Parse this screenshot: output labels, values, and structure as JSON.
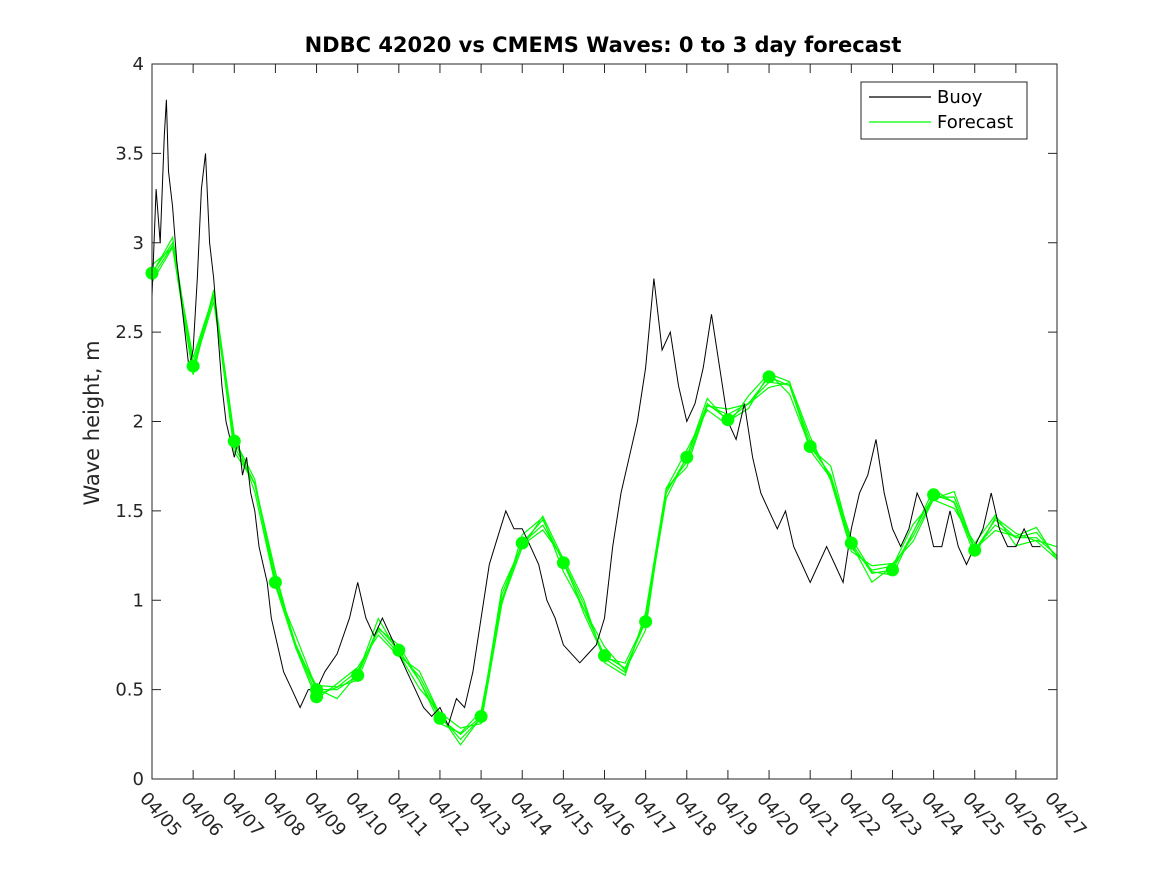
{
  "chart_data": {
    "type": "line",
    "title": "NDBC 42020 vs CMEMS Waves: 0 to 3 day forecast",
    "xlabel": "",
    "ylabel": "Wave height, m",
    "ylim": [
      0,
      4
    ],
    "yticks": [
      "0",
      "0.5",
      "1",
      "1.5",
      "2",
      "2.5",
      "3",
      "3.5",
      "4"
    ],
    "xlim": [
      0,
      22
    ],
    "xticks": [
      "04/05",
      "04/06",
      "04/07",
      "04/08",
      "04/09",
      "04/10",
      "04/11",
      "04/12",
      "04/13",
      "04/14",
      "04/15",
      "04/16",
      "04/17",
      "04/18",
      "04/19",
      "04/20",
      "04/21",
      "04/22",
      "04/23",
      "04/24",
      "04/25",
      "04/26",
      "04/27"
    ],
    "x_unit": "days since 04/05",
    "legend_position": "top-right",
    "grid": false,
    "series": [
      {
        "name": "Buoy",
        "color": "#000000",
        "x": [
          0,
          0.1,
          0.2,
          0.3,
          0.35,
          0.4,
          0.5,
          0.6,
          0.7,
          0.8,
          0.9,
          1.0,
          1.1,
          1.2,
          1.3,
          1.4,
          1.5,
          1.6,
          1.7,
          1.8,
          1.9,
          2.0,
          2.1,
          2.2,
          2.3,
          2.4,
          2.5,
          2.6,
          2.7,
          2.8,
          2.9,
          3.0,
          3.2,
          3.4,
          3.6,
          3.8,
          4.0,
          4.2,
          4.5,
          4.8,
          5.0,
          5.2,
          5.4,
          5.6,
          5.8,
          6.0,
          6.2,
          6.4,
          6.6,
          6.8,
          7.0,
          7.2,
          7.4,
          7.6,
          7.8,
          8.0,
          8.2,
          8.4,
          8.6,
          8.8,
          9.0,
          9.2,
          9.4,
          9.6,
          9.8,
          10.0,
          10.2,
          10.4,
          10.6,
          10.8,
          11.0,
          11.2,
          11.4,
          11.6,
          11.8,
          12.0,
          12.2,
          12.4,
          12.6,
          12.8,
          13.0,
          13.2,
          13.4,
          13.6,
          13.8,
          14.0,
          14.2,
          14.4,
          14.6,
          14.8,
          15.0,
          15.2,
          15.4,
          15.6,
          15.8,
          16.0,
          16.2,
          16.4,
          16.6,
          16.8,
          17.0,
          17.2,
          17.4,
          17.6,
          17.8,
          18.0,
          18.2,
          18.4,
          18.6,
          18.8,
          19.0,
          19.2,
          19.4,
          19.6,
          19.8,
          20.0,
          20.2,
          20.4,
          20.6,
          20.8,
          21.0,
          21.2,
          21.4,
          21.6
        ],
        "y": [
          2.7,
          3.3,
          3.0,
          3.6,
          3.8,
          3.4,
          3.2,
          2.9,
          2.7,
          2.5,
          2.3,
          2.4,
          2.8,
          3.3,
          3.5,
          3.0,
          2.8,
          2.5,
          2.2,
          2.0,
          1.9,
          1.8,
          1.9,
          1.7,
          1.8,
          1.6,
          1.5,
          1.3,
          1.2,
          1.1,
          0.9,
          0.8,
          0.6,
          0.5,
          0.4,
          0.5,
          0.5,
          0.6,
          0.7,
          0.9,
          1.1,
          0.9,
          0.8,
          0.9,
          0.8,
          0.7,
          0.6,
          0.5,
          0.4,
          0.35,
          0.4,
          0.3,
          0.45,
          0.4,
          0.6,
          0.9,
          1.2,
          1.35,
          1.5,
          1.4,
          1.4,
          1.3,
          1.2,
          1.0,
          0.9,
          0.75,
          0.7,
          0.65,
          0.7,
          0.75,
          0.9,
          1.3,
          1.6,
          1.8,
          2.0,
          2.3,
          2.8,
          2.4,
          2.5,
          2.2,
          2.0,
          2.1,
          2.3,
          2.6,
          2.3,
          2.0,
          1.9,
          2.1,
          1.8,
          1.6,
          1.5,
          1.4,
          1.5,
          1.3,
          1.2,
          1.1,
          1.2,
          1.3,
          1.2,
          1.1,
          1.4,
          1.6,
          1.7,
          1.9,
          1.6,
          1.4,
          1.3,
          1.4,
          1.6,
          1.5,
          1.3,
          1.3,
          1.5,
          1.3,
          1.2,
          1.3,
          1.4,
          1.6,
          1.4,
          1.3,
          1.3,
          1.4,
          1.3,
          1.3
        ]
      },
      {
        "name": "Forecast",
        "color": "#00ff00",
        "x": [
          0,
          0.5,
          1,
          1.5,
          2,
          2.5,
          3,
          3.5,
          4,
          4.5,
          5,
          5.5,
          6,
          6.5,
          7,
          7.5,
          8,
          8.5,
          9,
          9.5,
          10,
          10.5,
          11,
          11.5,
          12,
          12.5,
          13,
          13.5,
          14,
          14.5,
          15,
          15.5,
          16,
          16.5,
          17,
          17.5,
          18,
          18.5,
          19,
          19.5,
          20,
          20.5,
          21,
          21.5,
          22
        ],
        "y": [
          2.83,
          3.0,
          2.3,
          2.7,
          1.89,
          1.65,
          1.1,
          0.75,
          0.5,
          0.5,
          0.58,
          0.85,
          0.72,
          0.55,
          0.34,
          0.25,
          0.35,
          1.0,
          1.32,
          1.45,
          1.21,
          0.95,
          0.69,
          0.62,
          0.88,
          1.6,
          1.8,
          2.1,
          2.01,
          2.1,
          2.25,
          2.2,
          1.86,
          1.7,
          1.32,
          1.15,
          1.17,
          1.38,
          1.59,
          1.55,
          1.28,
          1.45,
          1.35,
          1.35,
          1.25
        ]
      }
    ],
    "markers": {
      "x": [
        0,
        1,
        2,
        3,
        4,
        4,
        5,
        6,
        7,
        8,
        9,
        10,
        11,
        12,
        13,
        14,
        15,
        16,
        17,
        18,
        19,
        20
      ],
      "y": [
        2.83,
        2.31,
        1.89,
        1.1,
        0.5,
        0.46,
        0.58,
        0.72,
        0.34,
        0.35,
        1.32,
        1.21,
        0.69,
        0.88,
        1.8,
        2.01,
        2.25,
        1.86,
        1.32,
        1.17,
        1.59,
        1.28
      ]
    }
  }
}
